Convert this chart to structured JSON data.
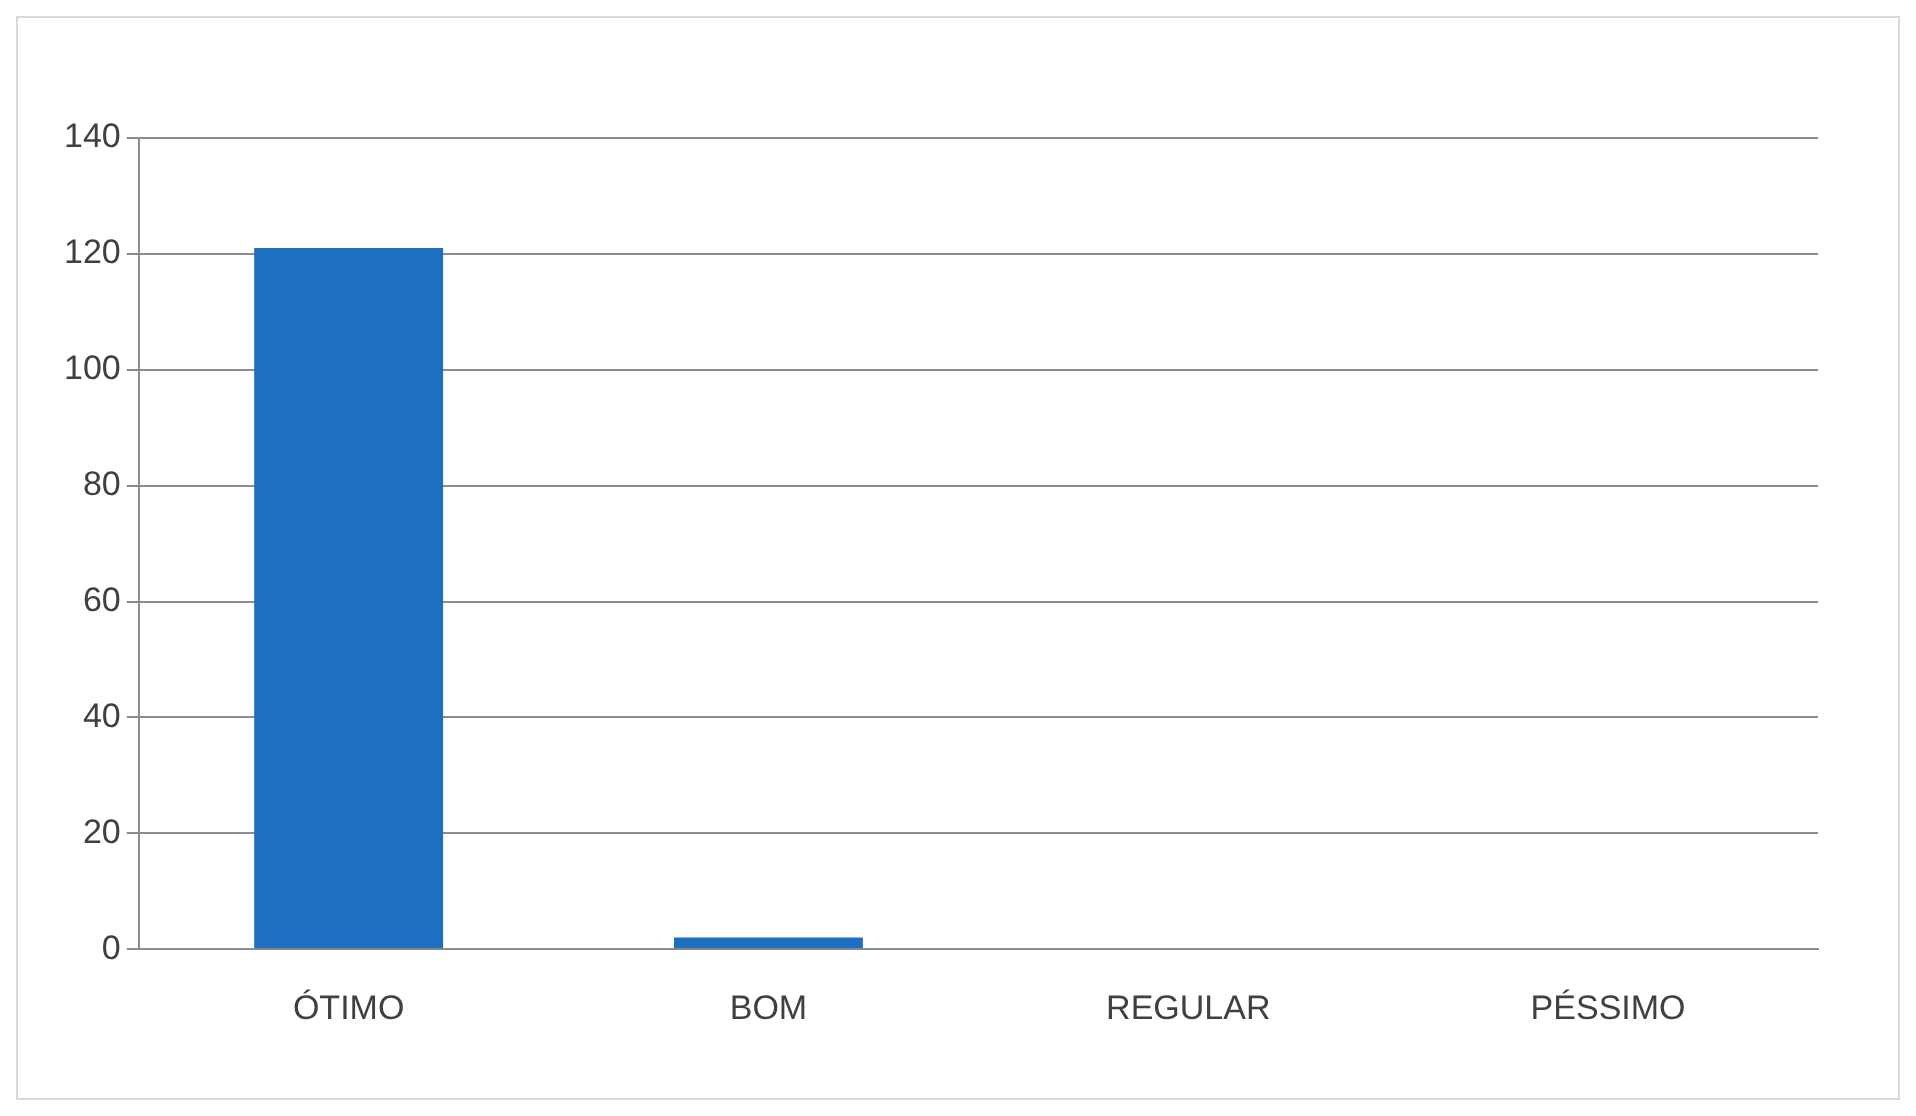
{
  "chart_data": {
    "type": "bar",
    "categories": [
      "ÓTIMO",
      "BOM",
      "REGULAR",
      "PÉSSIMO"
    ],
    "values": [
      121,
      2,
      0,
      0
    ],
    "color": "#1f6fc1",
    "ylim": [
      0,
      140
    ],
    "yticks": [
      0,
      20,
      40,
      60,
      80,
      100,
      120,
      140
    ],
    "grid": "y",
    "legend": false
  }
}
